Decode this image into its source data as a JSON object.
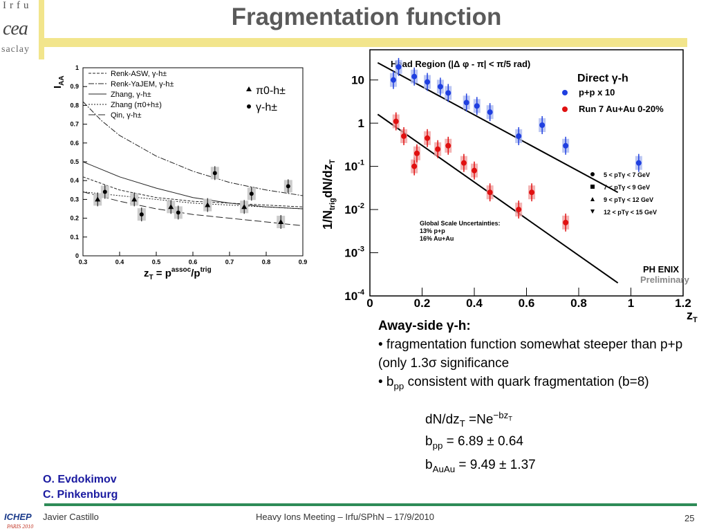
{
  "logo": {
    "top": "Irfu",
    "mid": "cea",
    "bottom": "saclay"
  },
  "title": "Fragmentation function",
  "chart_data": [
    {
      "type": "scatter",
      "xlabel_text": "z",
      "xlim": [
        0.3,
        0.9
      ],
      "ylim": [
        0,
        1
      ],
      "x_ticks": [
        "0.3",
        "0.4",
        "0.5",
        "0.6",
        "0.7",
        "0.8",
        "0.9"
      ],
      "y_ticks": [
        "0",
        "0.1",
        "0.2",
        "0.3",
        "0.4",
        "0.5",
        "0.6",
        "0.7",
        "0.8",
        "0.9",
        "1"
      ],
      "legend_lines": [
        "Renk-ASW, γ-h±",
        "Renk-YaJEM, γ-h±",
        "Zhang, γ-h±",
        "Zhang (π0+h±)",
        "Qin, γ-h±"
      ],
      "legend_markers": [
        "π0-h±",
        "γ-h±"
      ],
      "series": [
        {
          "name": "π0-h±",
          "marker": "triangle",
          "x": [
            0.34,
            0.44,
            0.54,
            0.64,
            0.74,
            0.84
          ],
          "y": [
            0.3,
            0.3,
            0.26,
            0.27,
            0.26,
            0.18
          ]
        },
        {
          "name": "γ-h±",
          "marker": "circle",
          "x": [
            0.36,
            0.46,
            0.56,
            0.66,
            0.76,
            0.86
          ],
          "y": [
            0.34,
            0.22,
            0.23,
            0.44,
            0.33,
            0.37
          ]
        }
      ]
    },
    {
      "type": "scatter",
      "title": "Head Region (|Δ φ - π| < π/5 rad)",
      "xlim": [
        0,
        1.2
      ],
      "y_log": true,
      "ylim": [
        0.0001,
        50
      ],
      "x_ticks": [
        "0",
        "0.2",
        "0.4",
        "0.6",
        "0.8",
        "1",
        "1.2"
      ],
      "xlabel": "zT",
      "ylabel": "1/Ntrig dN/dzT",
      "legend": [
        "Direct γ-h",
        "p+p x 10",
        "Run 7 Au+Au 0-20%"
      ],
      "pt_bins": [
        "5 < pTγ < 7 GeV",
        "7 < pTγ < 9 GeV",
        "9 < pTγ < 12 GeV",
        "12 < pTγ < 15 GeV"
      ],
      "annotation": [
        "Global Scale Uncertainties:",
        "13% p+p",
        "16% Au+Au"
      ],
      "series": [
        {
          "name": "p+p x 10",
          "x": [
            0.09,
            0.11,
            0.17,
            0.22,
            0.27,
            0.3,
            0.37,
            0.41,
            0.46,
            0.57,
            0.66,
            0.75,
            1.03
          ],
          "y": [
            10,
            20,
            12,
            9,
            7,
            5,
            3,
            2.5,
            1.8,
            0.5,
            0.9,
            0.3,
            0.12
          ]
        },
        {
          "name": "Run 7 Au+Au 0-20%",
          "x": [
            0.1,
            0.13,
            0.17,
            0.18,
            0.22,
            0.26,
            0.3,
            0.36,
            0.4,
            0.46,
            0.57,
            0.62,
            0.75
          ],
          "y": [
            1.1,
            0.5,
            0.1,
            0.2,
            0.45,
            0.25,
            0.3,
            0.12,
            0.08,
            0.025,
            0.01,
            0.025,
            0.005
          ]
        }
      ],
      "fit_lines": [
        {
          "x": [
            0.03,
            0.95
          ],
          "y": [
            25,
            0.025
          ]
        },
        {
          "x": [
            0.03,
            0.95
          ],
          "y": [
            1.6,
            0.0002
          ]
        }
      ],
      "phenix_label": "PH ENIX",
      "preliminary_label": "Preliminary"
    }
  ],
  "bullets": {
    "head": "Away-side γ-h:",
    "b1": "• fragmentation function somewhat steeper than p+p (only 1.3σ significance",
    "b2_prefix": "• b",
    "b2_sub": "pp",
    "b2_rest": " consistent with quark fragmentation (b=8)",
    "f1": "dN/dz",
    "f1_sub": "T",
    "f1_mid": " =Ne",
    "f1_sup": "−bz",
    "f1_sup_sub": "T",
    "f2_b": "b",
    "f2_sub": "pp",
    "f2_rest": " = 6.89 ± 0.64",
    "f3_b": "b",
    "f3_sub": "AuAu",
    "f3_rest": " = 9.49 ± 1.37"
  },
  "authors": [
    "O. Evdokimov",
    "C. Pinkenburg"
  ],
  "footer": {
    "logo": "ICHEP",
    "logo_sub": "PARIS 2010",
    "author": "Javier Castillo",
    "center": "Heavy Ions Meeting – Irfu/SPhN – 17/9/2010",
    "page": "25"
  },
  "colors": {
    "accent_yellow": "#f2e58c",
    "rule_green": "#2e8b57",
    "author_blue": "#1a1aa0",
    "pp_blue": "#1f3fe0",
    "auau_red": "#e01010"
  }
}
